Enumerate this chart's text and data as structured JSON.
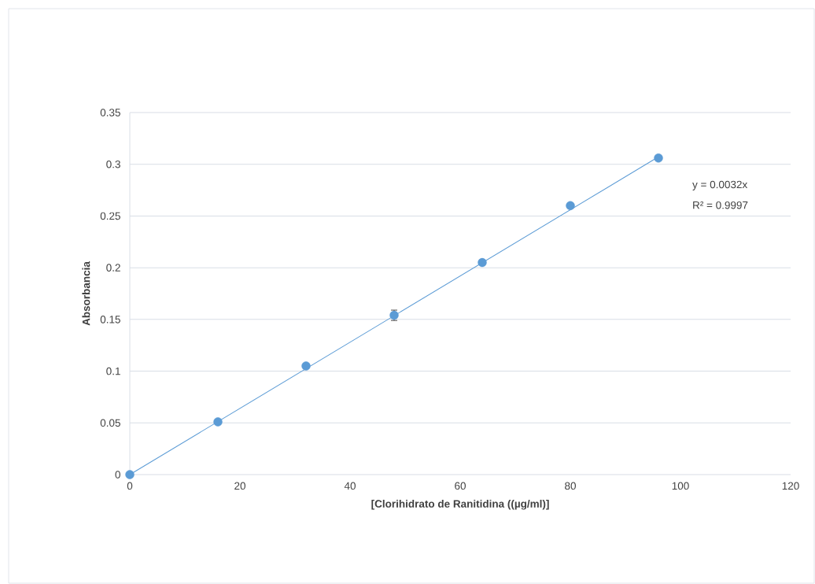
{
  "chart_data": {
    "type": "scatter",
    "xlabel": "[Clorihidrato de Ranitidina ((µg/ml)]",
    "ylabel": "Absorbancia",
    "xlim": [
      0,
      120
    ],
    "xticks": [
      0,
      20,
      40,
      60,
      80,
      100,
      120
    ],
    "ylim": [
      0,
      0.35
    ],
    "yticks": [
      0,
      0.05,
      0.1,
      0.15,
      0.2,
      0.25,
      0.3,
      0.35
    ],
    "grid": "y",
    "series": [
      {
        "type": "line",
        "color": "#5b9bd5",
        "x": [
          0,
          96
        ],
        "values": [
          0,
          0.3072
        ],
        "marker": "none"
      },
      {
        "color": "#5b9bd5",
        "marker": "circle",
        "x": [
          0,
          16,
          32,
          48,
          64,
          80,
          96
        ],
        "values": [
          0,
          0.051,
          0.105,
          0.154,
          0.205,
          0.26,
          0.306
        ],
        "errors": [
          null,
          null,
          null,
          0.005,
          null,
          null,
          null
        ]
      }
    ],
    "annotations": [
      "y = 0.0032x",
      "R² = 0.9997"
    ]
  }
}
